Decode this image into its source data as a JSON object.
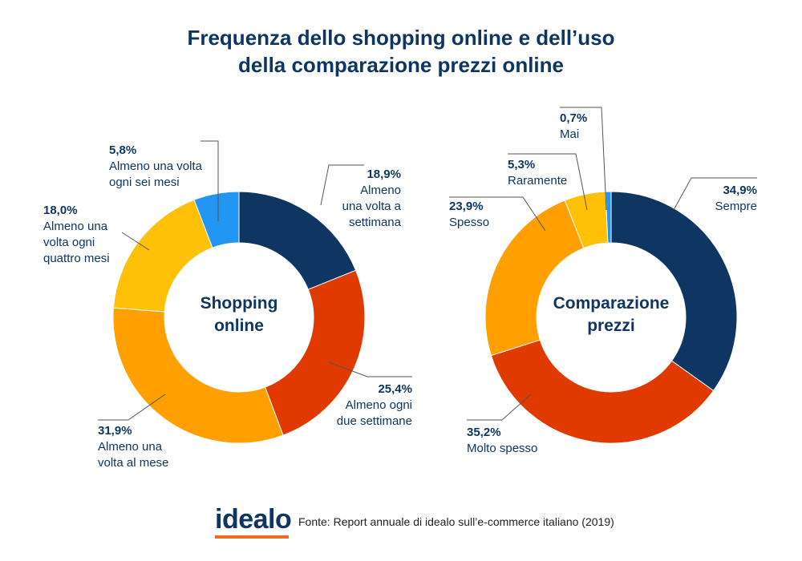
{
  "title": {
    "line1": "Frequenza dello shopping online e dell’uso",
    "line2": "della comparazione prezzi online"
  },
  "colors": {
    "title": "#0f3663",
    "navy": "#0f3663",
    "red": "#e03a00",
    "orange": "#ffa000",
    "yellow": "#ffc107",
    "blue": "#2196f3",
    "logo_underline": "#f36b21"
  },
  "footer": {
    "logo": "idealo",
    "source": "Fonte: Report annuale di idealo sull’e-commerce italiano (2019)"
  },
  "chart_data": [
    {
      "type": "pie",
      "variant": "donut",
      "center_label": [
        "Shopping",
        "online"
      ],
      "slices": [
        {
          "value": 18.9,
          "value_label": "18,9%",
          "label": [
            "Almeno",
            "una volta a",
            "settimana"
          ],
          "color": "#0f3663"
        },
        {
          "value": 25.4,
          "value_label": "25,4%",
          "label": [
            "Almeno ogni",
            "due settimane"
          ],
          "color": "#e03a00"
        },
        {
          "value": 31.9,
          "value_label": "31,9%",
          "label": [
            "Almeno una",
            "volta al mese"
          ],
          "color": "#ffa000"
        },
        {
          "value": 18.0,
          "value_label": "18,0%",
          "label": [
            "Almeno una",
            "volta ogni",
            "quattro mesi"
          ],
          "color": "#ffc107"
        },
        {
          "value": 5.8,
          "value_label": "5,8%",
          "label": [
            "Almeno una volta",
            "ogni sei mesi"
          ],
          "color": "#2196f3"
        }
      ]
    },
    {
      "type": "pie",
      "variant": "donut",
      "center_label": [
        "Comparazione",
        "prezzi"
      ],
      "slices": [
        {
          "value": 34.9,
          "value_label": "34,9%",
          "label": [
            "Sempre"
          ],
          "color": "#0f3663"
        },
        {
          "value": 35.2,
          "value_label": "35,2%",
          "label": [
            "Molto spesso"
          ],
          "color": "#e03a00"
        },
        {
          "value": 23.9,
          "value_label": "23,9%",
          "label": [
            "Spesso"
          ],
          "color": "#ffa000"
        },
        {
          "value": 5.3,
          "value_label": "5,3%",
          "label": [
            "Raramente"
          ],
          "color": "#ffc107"
        },
        {
          "value": 0.7,
          "value_label": "0,7%",
          "label": [
            "Mai"
          ],
          "color": "#2196f3"
        }
      ]
    }
  ]
}
